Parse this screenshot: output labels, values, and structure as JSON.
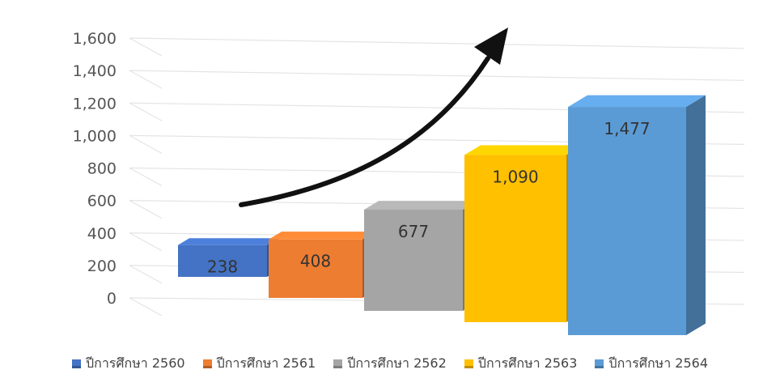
{
  "chart_data": {
    "type": "bar",
    "categories": [
      "ปีการศึกษา 2560",
      "ปีการศึกษา 2561",
      "ปีการศึกษา 2562",
      "ปีการศึกษา 2563",
      "ปีการศึกษา 2564"
    ],
    "values": [
      238,
      408,
      677,
      1090,
      1477
    ],
    "value_labels": [
      "238",
      "408",
      "677",
      "1,090",
      "1,477"
    ],
    "colors": [
      "#4472c4",
      "#ed7d31",
      "#a5a5a5",
      "#ffc000",
      "#5b9bd5"
    ],
    "ylim": [
      0,
      1600
    ],
    "yticks": [
      "0",
      "200",
      "400",
      "600",
      "800",
      "1,000",
      "1,200",
      "1,400",
      "1,600"
    ],
    "grid": true,
    "legend_position": "bottom",
    "annotation": "upward-trend-arrow"
  }
}
